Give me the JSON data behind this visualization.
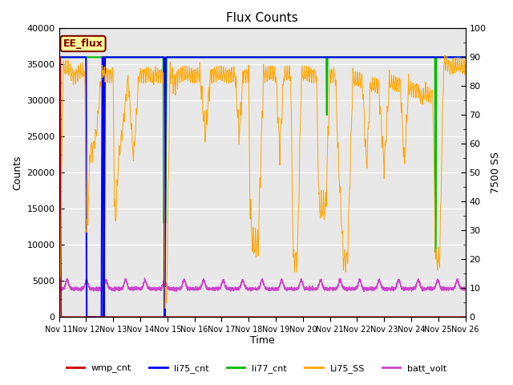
{
  "title": "Flux Counts",
  "xlabel": "Time",
  "ylabel_left": "Counts",
  "ylabel_right": "7500 SS",
  "left_ylim": [
    0,
    40000
  ],
  "right_ylim": [
    0,
    100
  ],
  "figure_bg": "#ffffff",
  "plot_bg": "#e8e8e8",
  "plot_bg2": "#d0d0d0",
  "xtick_labels": [
    "Nov 11",
    "Nov 12",
    "Nov 13",
    "Nov 14",
    "Nov 15",
    "Nov 16",
    "Nov 17",
    "Nov 18",
    "Nov 19",
    "Nov 20",
    "Nov 21",
    "Nov 22",
    "Nov 23",
    "Nov 24",
    "Nov 25",
    "Nov 26"
  ],
  "annotation_text": "EE_flux",
  "annotation_color": "#800000",
  "annotation_bg": "#ffff99",
  "annotation_border": "#800000",
  "li75_cnt_color": "#0000ff",
  "li77_cnt_color": "#00bb00",
  "Li75_SS_color": "#ffa500",
  "batt_volt_color": "#cc44cc",
  "wmp_cnt_color": "#cc0000",
  "legend_labels": [
    "wmp_cnt",
    "li75_cnt",
    "li77_cnt",
    "Li75_SS",
    "batt_volt"
  ],
  "legend_colors": [
    "#cc0000",
    "#0000ff",
    "#00bb00",
    "#ffa500",
    "#cc44cc"
  ]
}
